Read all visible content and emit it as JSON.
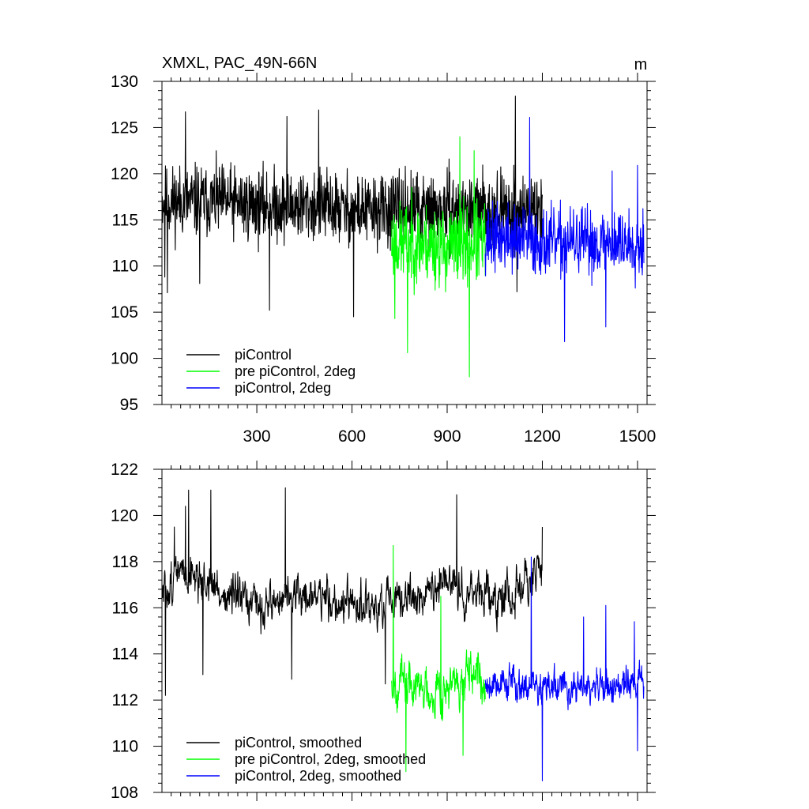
{
  "chart_data": [
    {
      "type": "line",
      "title": "XMXL, PAC_49N-66N",
      "units": "m",
      "xlabel": "",
      "ylabel": "",
      "xlim": [
        1,
        1530
      ],
      "ylim": [
        95,
        130
      ],
      "xticks": [
        300,
        600,
        900,
        1200,
        1500
      ],
      "xtick_labels": [
        "300",
        "600",
        "900",
        "1200",
        "1500"
      ],
      "yticks": [
        95,
        100,
        105,
        110,
        115,
        120,
        125,
        130
      ],
      "ytick_labels": [
        "95",
        "100",
        "105",
        "110",
        "115",
        "120",
        "125",
        "130"
      ],
      "grid": false,
      "legend_position": "bottom-left",
      "series": [
        {
          "name": "piControl",
          "color": "#000000",
          "description": "annual values, years 1-1200",
          "x_range": [
            1,
            1200
          ],
          "anchors_x": [
            1,
            100,
            200,
            300,
            400,
            500,
            600,
            700,
            800,
            900,
            1000,
            1100,
            1200
          ],
          "anchors_y": [
            117,
            117,
            117,
            116.5,
            116.5,
            116.5,
            116,
            116,
            116,
            116,
            116,
            116,
            116
          ],
          "amplitude": 3.2,
          "seed": 11,
          "extremes": [
            [
              10,
              108.8
            ],
            [
              18,
              107.1
            ],
            [
              75,
              126.7
            ],
            [
              120,
              108.1
            ],
            [
              340,
              105.2
            ],
            [
              395,
              126.2
            ],
            [
              495,
              126.9
            ],
            [
              605,
              104.5
            ],
            [
              1115,
              128.4
            ],
            [
              1120,
              107.2
            ]
          ]
        },
        {
          "name": "pre piControl, 2deg",
          "color": "#00ff00",
          "description": "annual values, years 725-1020",
          "x_range": [
            725,
            1020
          ],
          "anchors_x": [
            725,
            800,
            900,
            1020
          ],
          "anchors_y": [
            112.5,
            112.5,
            112,
            112.5
          ],
          "amplitude": 3.6,
          "seed": 23,
          "extremes": [
            [
              735,
              104.3
            ],
            [
              775,
              100.6
            ],
            [
              940,
              124
            ],
            [
              970,
              98
            ],
            [
              985,
              122.5
            ]
          ]
        },
        {
          "name": "piControl, 2deg",
          "color": "#0000ff",
          "description": "annual values, years 1020-1520",
          "x_range": [
            1020,
            1520
          ],
          "anchors_x": [
            1020,
            1100,
            1200,
            1300,
            1400,
            1520
          ],
          "anchors_y": [
            113,
            113,
            112.5,
            112.5,
            112.5,
            112.5
          ],
          "amplitude": 3.0,
          "seed": 37,
          "extremes": [
            [
              1160,
              126.1
            ],
            [
              1270,
              101.8
            ],
            [
              1400,
              103.4
            ],
            [
              1420,
              120.3
            ],
            [
              1500,
              120.9
            ]
          ]
        }
      ],
      "legend": [
        "piControl",
        "pre piControl, 2deg",
        "piControl, 2deg"
      ]
    },
    {
      "type": "line",
      "title": "",
      "xlabel": "",
      "ylabel": "",
      "xlim": [
        1,
        1530
      ],
      "ylim": [
        108,
        122
      ],
      "xticks": [
        300,
        600,
        900,
        1200,
        1500
      ],
      "yticks": [
        108,
        110,
        112,
        114,
        116,
        118,
        120,
        122
      ],
      "ytick_labels": [
        "108",
        "110",
        "112",
        "114",
        "116",
        "118",
        "120",
        "122"
      ],
      "grid": false,
      "legend_position": "bottom-left",
      "series": [
        {
          "name": "piControl, smoothed",
          "color": "#000000",
          "description": "smoothed, years 1-1200",
          "x_range": [
            1,
            1200
          ],
          "anchors_x": [
            1,
            50,
            100,
            150,
            200,
            300,
            400,
            500,
            600,
            700,
            800,
            900,
            1000,
            1100,
            1200
          ],
          "anchors_y": [
            116.5,
            117.5,
            117.5,
            117,
            116.5,
            116,
            116.5,
            116.5,
            116,
            116,
            116.5,
            117,
            116.5,
            116.5,
            117.5
          ],
          "amplitude": 1.4,
          "seed": 51,
          "extremes": [
            [
              12,
              112.2
            ],
            [
              40,
              119.5
            ],
            [
              75,
              120.4
            ],
            [
              85,
              121.1
            ],
            [
              130,
              113.1
            ],
            [
              155,
              121.1
            ],
            [
              390,
              121.2
            ],
            [
              410,
              112.9
            ],
            [
              705,
              112.7
            ],
            [
              930,
              120.9
            ],
            [
              1200,
              119.5
            ]
          ]
        },
        {
          "name": "pre piControl, 2deg, smoothed",
          "color": "#00ff00",
          "description": "smoothed, years 725-1020",
          "x_range": [
            725,
            1020
          ],
          "anchors_x": [
            725,
            800,
            900,
            1020
          ],
          "anchors_y": [
            113,
            112.5,
            112.5,
            113
          ],
          "amplitude": 1.6,
          "seed": 67,
          "extremes": [
            [
              730,
              118.7
            ],
            [
              770,
              108.9
            ],
            [
              880,
              116.5
            ],
            [
              950,
              109.6
            ]
          ]
        },
        {
          "name": "piControl, 2deg, smoothed",
          "color": "#0000ff",
          "description": "smoothed, years 1020-1520",
          "x_range": [
            1020,
            1520
          ],
          "anchors_x": [
            1020,
            1100,
            1200,
            1300,
            1400,
            1520
          ],
          "anchors_y": [
            112.8,
            112.8,
            112.5,
            112.5,
            112.5,
            112.8
          ],
          "amplitude": 1.2,
          "seed": 79,
          "extremes": [
            [
              1165,
              118.2
            ],
            [
              1200,
              108.5
            ],
            [
              1330,
              115.6
            ],
            [
              1400,
              116.1
            ],
            [
              1490,
              115.4
            ],
            [
              1500,
              109.8
            ]
          ]
        }
      ],
      "legend": [
        "piControl, smoothed",
        "pre piControl, 2deg, smoothed",
        "piControl, 2deg, smoothed"
      ]
    }
  ]
}
